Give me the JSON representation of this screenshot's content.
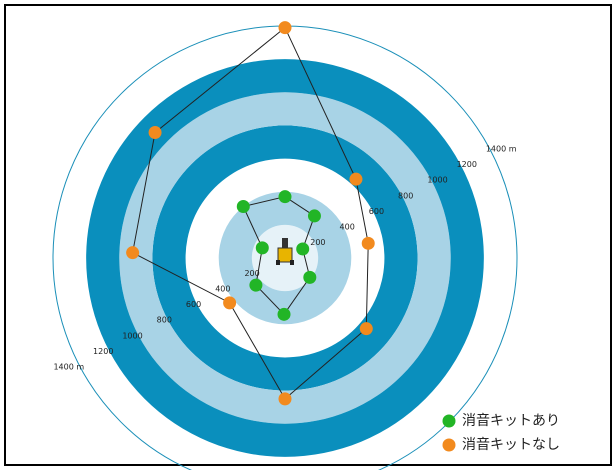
{
  "chart_data": {
    "type": "polar",
    "rlim": [
      0,
      1400
    ],
    "rticks": [
      200,
      400,
      600,
      800,
      1000,
      1200,
      {
        "value": 1400,
        "label": "1400 m"
      }
    ],
    "bands": [
      {
        "from": 0,
        "to": 200,
        "color": "#e6f2f8"
      },
      {
        "from": 200,
        "to": 400,
        "color": "#a8d3e6"
      },
      {
        "from": 600,
        "to": 800,
        "color": "#0a8fbd"
      },
      {
        "from": 800,
        "to": 1000,
        "color": "#a8d3e6"
      },
      {
        "from": 1000,
        "to": 1200,
        "color": "#0a8fbd"
      }
    ],
    "series": [
      {
        "name": "消音キットあり",
        "color": "#22b526",
        "angles": [
          0,
          35,
          63,
          128,
          181,
          227,
          294,
          321
        ],
        "values": [
          370,
          310,
          120,
          190,
          340,
          240,
          150,
          400
        ]
      },
      {
        "name": "消音キットなし",
        "color": "#f28a1e",
        "angles": [
          0,
          42,
          80,
          131,
          180,
          231,
          272,
          314
        ],
        "values": [
          1390,
          640,
          510,
          650,
          850,
          430,
          920,
          1090
        ]
      }
    ]
  }
}
